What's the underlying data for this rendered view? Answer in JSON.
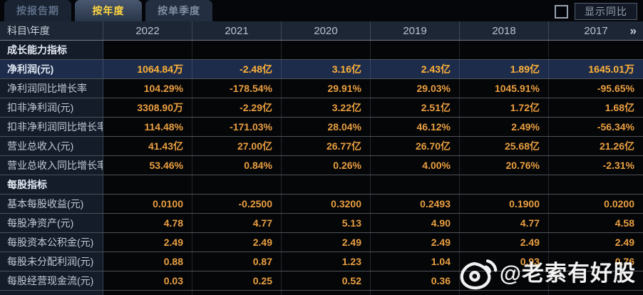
{
  "tabs": [
    {
      "label": "按报告期",
      "active": false
    },
    {
      "label": "按年度",
      "active": true
    },
    {
      "label": "按单季度",
      "active": false
    }
  ],
  "topbar": {
    "show_yoy_label": "显示同比",
    "yoy_checkbox_checked": false
  },
  "table": {
    "corner_label": "科目\\年度",
    "years": [
      "2022",
      "2021",
      "2020",
      "2019",
      "2018",
      "2017"
    ],
    "more_years_icon": "»",
    "rows": [
      {
        "label": "成长能力指标",
        "type": "section",
        "values": [
          "",
          "",
          "",
          "",
          "",
          ""
        ]
      },
      {
        "label": "净利润(元)",
        "type": "highlight",
        "values": [
          "1064.84万",
          "-2.48亿",
          "3.16亿",
          "2.43亿",
          "1.89亿",
          "1645.01万"
        ]
      },
      {
        "label": "净利润同比增长率",
        "type": "data",
        "values": [
          "104.29%",
          "-178.54%",
          "29.91%",
          "29.03%",
          "1045.91%",
          "-95.65%"
        ]
      },
      {
        "label": "扣非净利润(元)",
        "type": "data",
        "values": [
          "3308.90万",
          "-2.29亿",
          "3.22亿",
          "2.51亿",
          "1.72亿",
          "1.68亿"
        ]
      },
      {
        "label": "扣非净利润同比增长率",
        "type": "data",
        "values": [
          "114.48%",
          "-171.03%",
          "28.04%",
          "46.12%",
          "2.49%",
          "-56.34%"
        ]
      },
      {
        "label": "营业总收入(元)",
        "type": "data",
        "values": [
          "41.43亿",
          "27.00亿",
          "26.77亿",
          "26.70亿",
          "25.68亿",
          "21.26亿"
        ]
      },
      {
        "label": "营业总收入同比增长率",
        "type": "data",
        "values": [
          "53.46%",
          "0.84%",
          "0.26%",
          "4.00%",
          "20.76%",
          "-2.31%"
        ]
      },
      {
        "label": "每股指标",
        "type": "section",
        "values": [
          "",
          "",
          "",
          "",
          "",
          ""
        ]
      },
      {
        "label": "基本每股收益(元)",
        "type": "data",
        "values": [
          "0.0100",
          "-0.2500",
          "0.3200",
          "0.2493",
          "0.1900",
          "0.0200"
        ]
      },
      {
        "label": "每股净资产(元)",
        "type": "data",
        "values": [
          "4.78",
          "4.77",
          "5.13",
          "4.90",
          "4.77",
          "4.58"
        ]
      },
      {
        "label": "每股资本公积金(元)",
        "type": "data",
        "values": [
          "2.49",
          "2.49",
          "2.49",
          "2.49",
          "2.49",
          "2.49"
        ]
      },
      {
        "label": "每股未分配利润(元)",
        "type": "data",
        "values": [
          "0.88",
          "0.87",
          "1.23",
          "1.04",
          "0.93",
          "0.76"
        ]
      },
      {
        "label": "每股经营现金流(元)",
        "type": "data",
        "values": [
          "0.03",
          "0.25",
          "0.52",
          "0.36",
          "",
          ""
        ]
      },
      {
        "label": "",
        "type": "stub",
        "values": [
          "",
          "",
          "",
          "",
          "",
          ""
        ]
      }
    ]
  },
  "watermark": {
    "icon": "weibo-logo",
    "text": "@老索有好股"
  },
  "colors": {
    "value_text": "#ea9f41",
    "highlight_value_text": "#ffb239",
    "highlight_row_bg": "#1e2c4b",
    "active_tab_text": "#ffd640",
    "header_bg": "#1d2634",
    "label_col_bg": "#141b29"
  }
}
